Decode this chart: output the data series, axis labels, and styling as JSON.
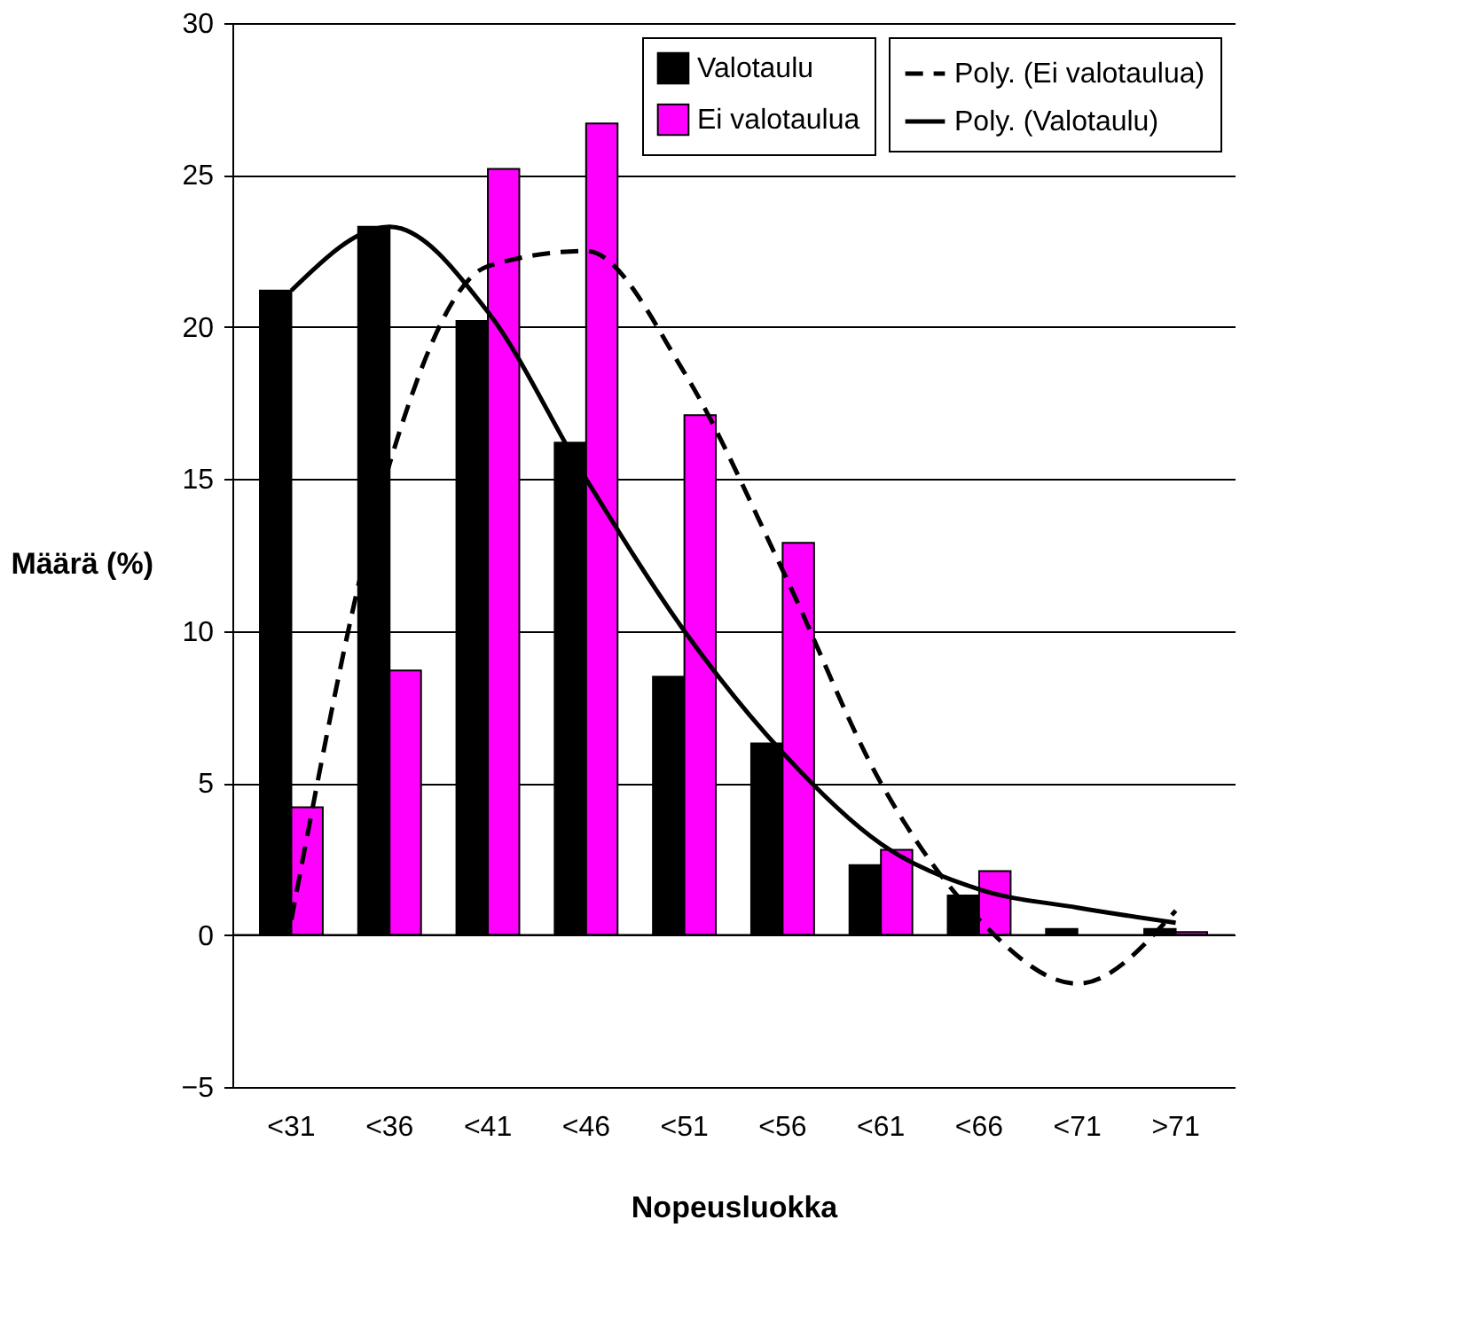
{
  "chart_data": {
    "type": "bar",
    "xlabel": "Nopeusluokka",
    "ylabel": "Määrä (%)",
    "categories": [
      "<31",
      "<36",
      "<41",
      "<46",
      "<51",
      "<56",
      "<61",
      "<66",
      "<71",
      ">71"
    ],
    "series": [
      {
        "name": "Valotaulu",
        "color": "#000000",
        "values": [
          21.2,
          23.3,
          20.2,
          16.2,
          8.5,
          6.3,
          2.3,
          1.3,
          0.2,
          0.2
        ]
      },
      {
        "name": "Ei valotaulua",
        "color": "#ff00ff",
        "values": [
          4.2,
          8.7,
          25.2,
          26.7,
          17.1,
          12.9,
          2.8,
          2.1,
          null,
          0.1
        ]
      },
      {
        "name": "Poly. (Ei valotaulua)",
        "type": "line",
        "color": "#000000",
        "line_style": "dashed",
        "values": [
          0.5,
          15.5,
          22,
          22.5,
          18.5,
          12,
          5,
          0.5,
          -1.6,
          0.8
        ]
      },
      {
        "name": "Poly. (Valotaulu)",
        "type": "line",
        "color": "#000000",
        "line_style": "solid",
        "values": [
          21.2,
          23.3,
          20.5,
          15,
          10,
          6,
          3,
          1.5,
          0.9,
          0.4
        ]
      }
    ],
    "ylim": [
      -5,
      30
    ],
    "yticks": [
      -5,
      0,
      5,
      10,
      15,
      20,
      25,
      30
    ],
    "grid": "y",
    "legend": "top right",
    "marker": "none"
  }
}
